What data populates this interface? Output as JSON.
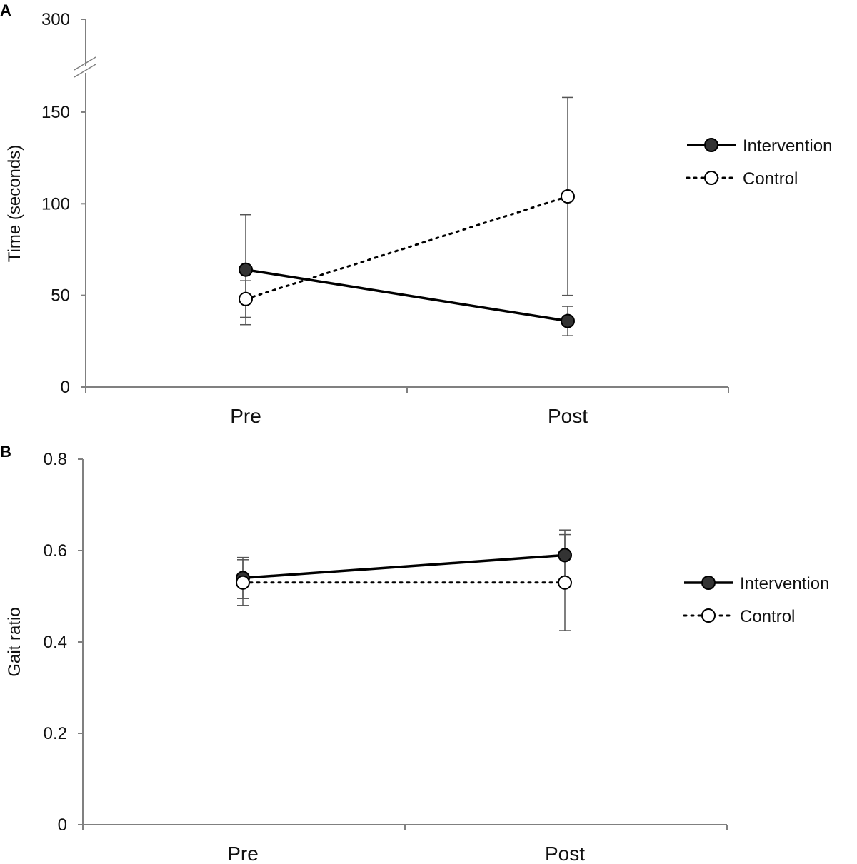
{
  "chart_data": [
    {
      "panel_label": "A",
      "type": "line",
      "ylabel": "Time (seconds)",
      "categories": [
        "Pre",
        "Post"
      ],
      "yticks": [
        0,
        50,
        100,
        150,
        300
      ],
      "axis_break": [
        170,
        290
      ],
      "ylim": [
        0,
        300
      ],
      "legend_placement": "right",
      "series": [
        {
          "name": "Intervention",
          "style": "solid-filled",
          "values": [
            64,
            36
          ],
          "error_upper": [
            94,
            44
          ],
          "error_lower": [
            34,
            28
          ]
        },
        {
          "name": "Control",
          "style": "dotted-open",
          "values": [
            48,
            104
          ],
          "error_upper": [
            58,
            158
          ],
          "error_lower": [
            38,
            50
          ]
        }
      ]
    },
    {
      "panel_label": "B",
      "type": "line",
      "ylabel": "Gait ratio",
      "categories": [
        "Pre",
        "Post"
      ],
      "yticks": [
        0,
        0.2,
        0.4,
        0.6,
        0.8
      ],
      "ylim": [
        0,
        0.8
      ],
      "legend_placement": "right",
      "series": [
        {
          "name": "Intervention",
          "style": "solid-filled",
          "values": [
            0.54,
            0.59
          ],
          "error_upper": [
            0.585,
            0.645
          ],
          "error_lower": [
            0.495,
            0.535
          ]
        },
        {
          "name": "Control",
          "style": "dotted-open",
          "values": [
            0.53,
            0.53
          ],
          "error_upper": [
            0.58,
            0.635
          ],
          "error_lower": [
            0.48,
            0.425
          ]
        }
      ]
    }
  ],
  "colors": {
    "axis": "#808080",
    "marker_fill_intervention": "#333333",
    "marker_fill_control": "#ffffff",
    "line": "#000000"
  }
}
